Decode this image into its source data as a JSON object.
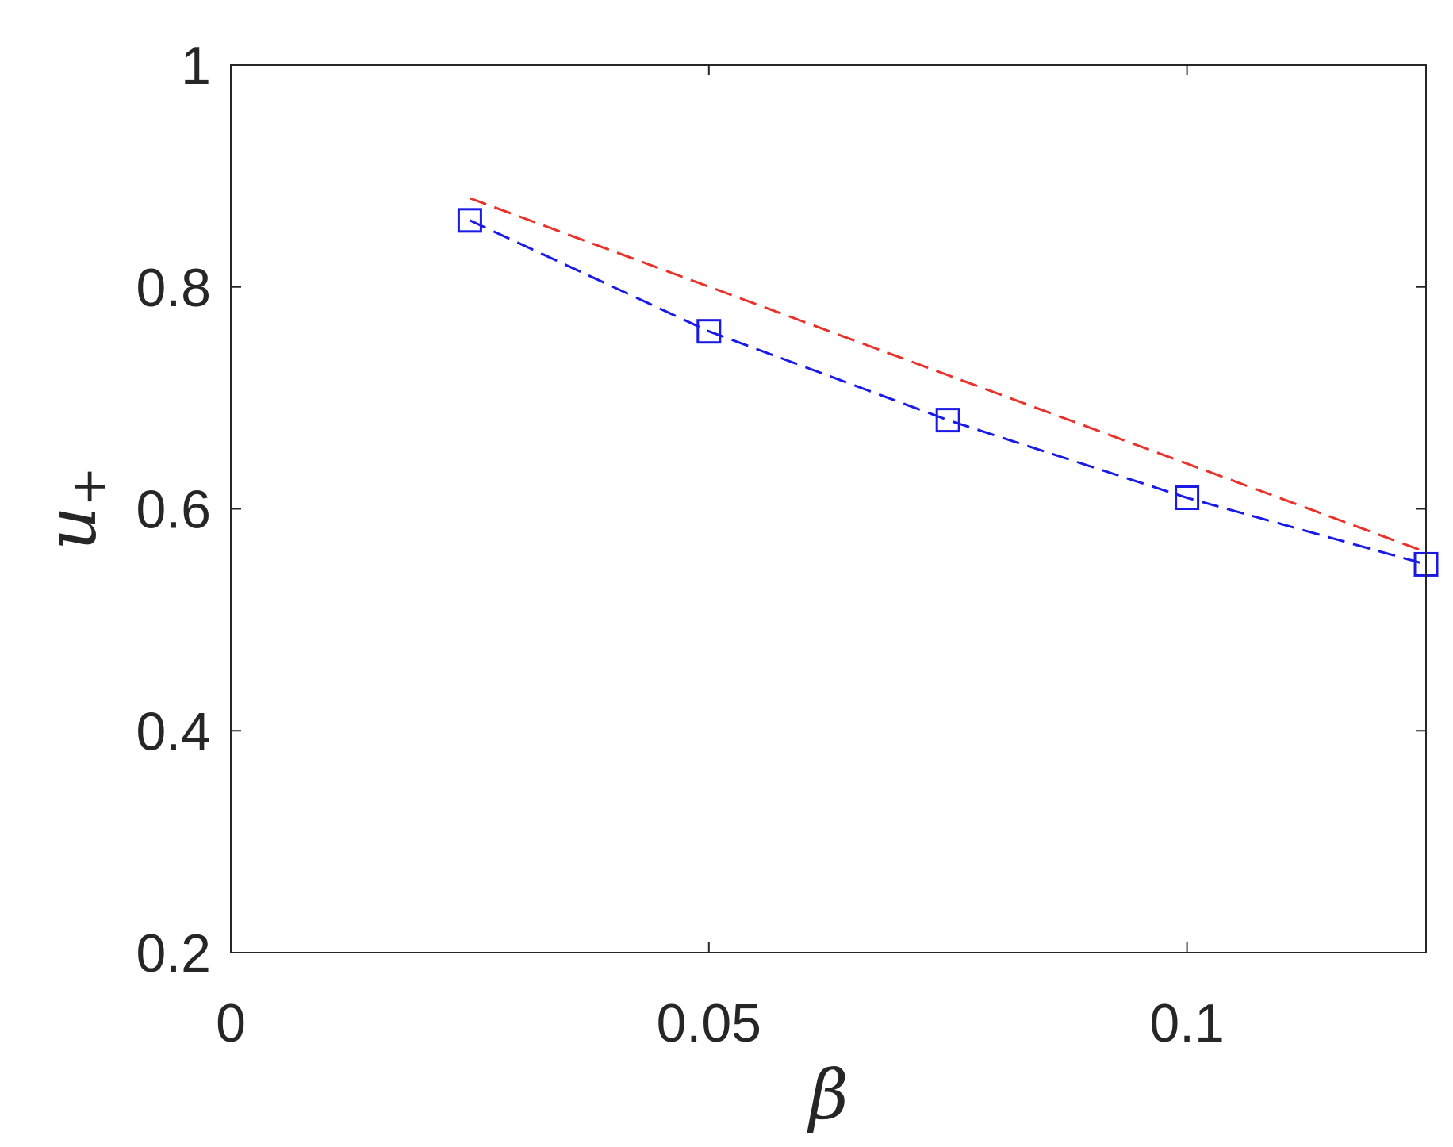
{
  "chart_data": {
    "type": "line",
    "xlabel": "β",
    "ylabel": {
      "base": "u",
      "subscript": "+"
    },
    "xlim": [
      0,
      0.125
    ],
    "ylim": [
      0.2,
      1
    ],
    "xticks": [
      0,
      0.05,
      0.1
    ],
    "xtick_labels": [
      "0",
      "0.05",
      "0.1"
    ],
    "yticks": [
      0.2,
      0.4,
      0.6,
      0.8,
      1
    ],
    "ytick_labels": [
      "0.2",
      "0.4",
      "0.6",
      "0.8",
      "1"
    ],
    "grid": false,
    "box": true,
    "series": [
      {
        "color": "#e8322a",
        "line_style": "dashed",
        "marker": "none",
        "x": [
          0.025,
          0.125
        ],
        "y": [
          0.88,
          0.561
        ]
      },
      {
        "color": "#1a1ae6",
        "line_style": "dashed",
        "marker": "square",
        "x": [
          0.025,
          0.05,
          0.075,
          0.1,
          0.125
        ],
        "y": [
          0.86,
          0.76,
          0.68,
          0.61,
          0.55
        ]
      }
    ]
  }
}
